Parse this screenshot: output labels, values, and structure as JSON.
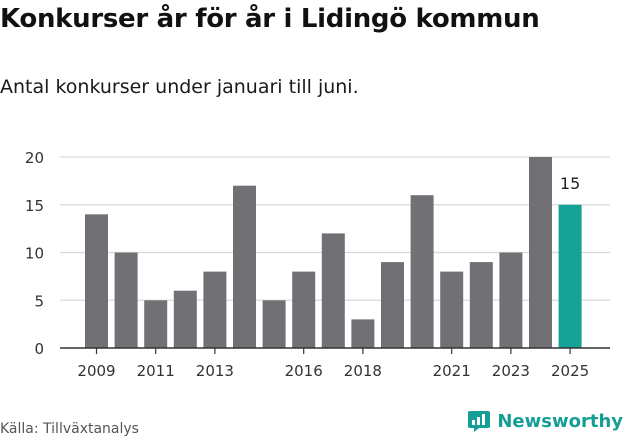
{
  "title": "Konkurser år för år i Lidingö kommun",
  "subtitle": "Antal konkurser under januari till juni.",
  "source": "Källa: Tillväxtanalys",
  "brand": {
    "name": "Newsworthy",
    "icon": "newsworthy-logo-icon"
  },
  "colors": {
    "bar": "#717075",
    "highlight": "#14a196",
    "grid": "#d9d9d9",
    "axis": "#333333",
    "text": "#333333"
  },
  "chart_data": {
    "type": "bar",
    "title": "Konkurser år för år i Lidingö kommun",
    "subtitle": "Antal konkurser under januari till juni.",
    "categories": [
      "2009",
      "2010",
      "2011",
      "2012",
      "2013",
      "2014",
      "2015",
      "2016",
      "2017",
      "2018",
      "2019",
      "2020",
      "2021",
      "2022",
      "2023",
      "2024",
      "2025"
    ],
    "values": [
      14,
      10,
      5,
      6,
      8,
      17,
      5,
      8,
      12,
      3,
      9,
      16,
      8,
      9,
      10,
      20,
      15
    ],
    "xtick_labels": [
      "2009",
      "2011",
      "2013",
      "2016",
      "2018",
      "2021",
      "2023",
      "2025"
    ],
    "yticks": [
      0,
      5,
      10,
      15,
      20
    ],
    "ylim": [
      0,
      20
    ],
    "xlabel": "",
    "ylabel": "",
    "grid": true,
    "highlight": {
      "category": "2025",
      "label": "15"
    }
  }
}
